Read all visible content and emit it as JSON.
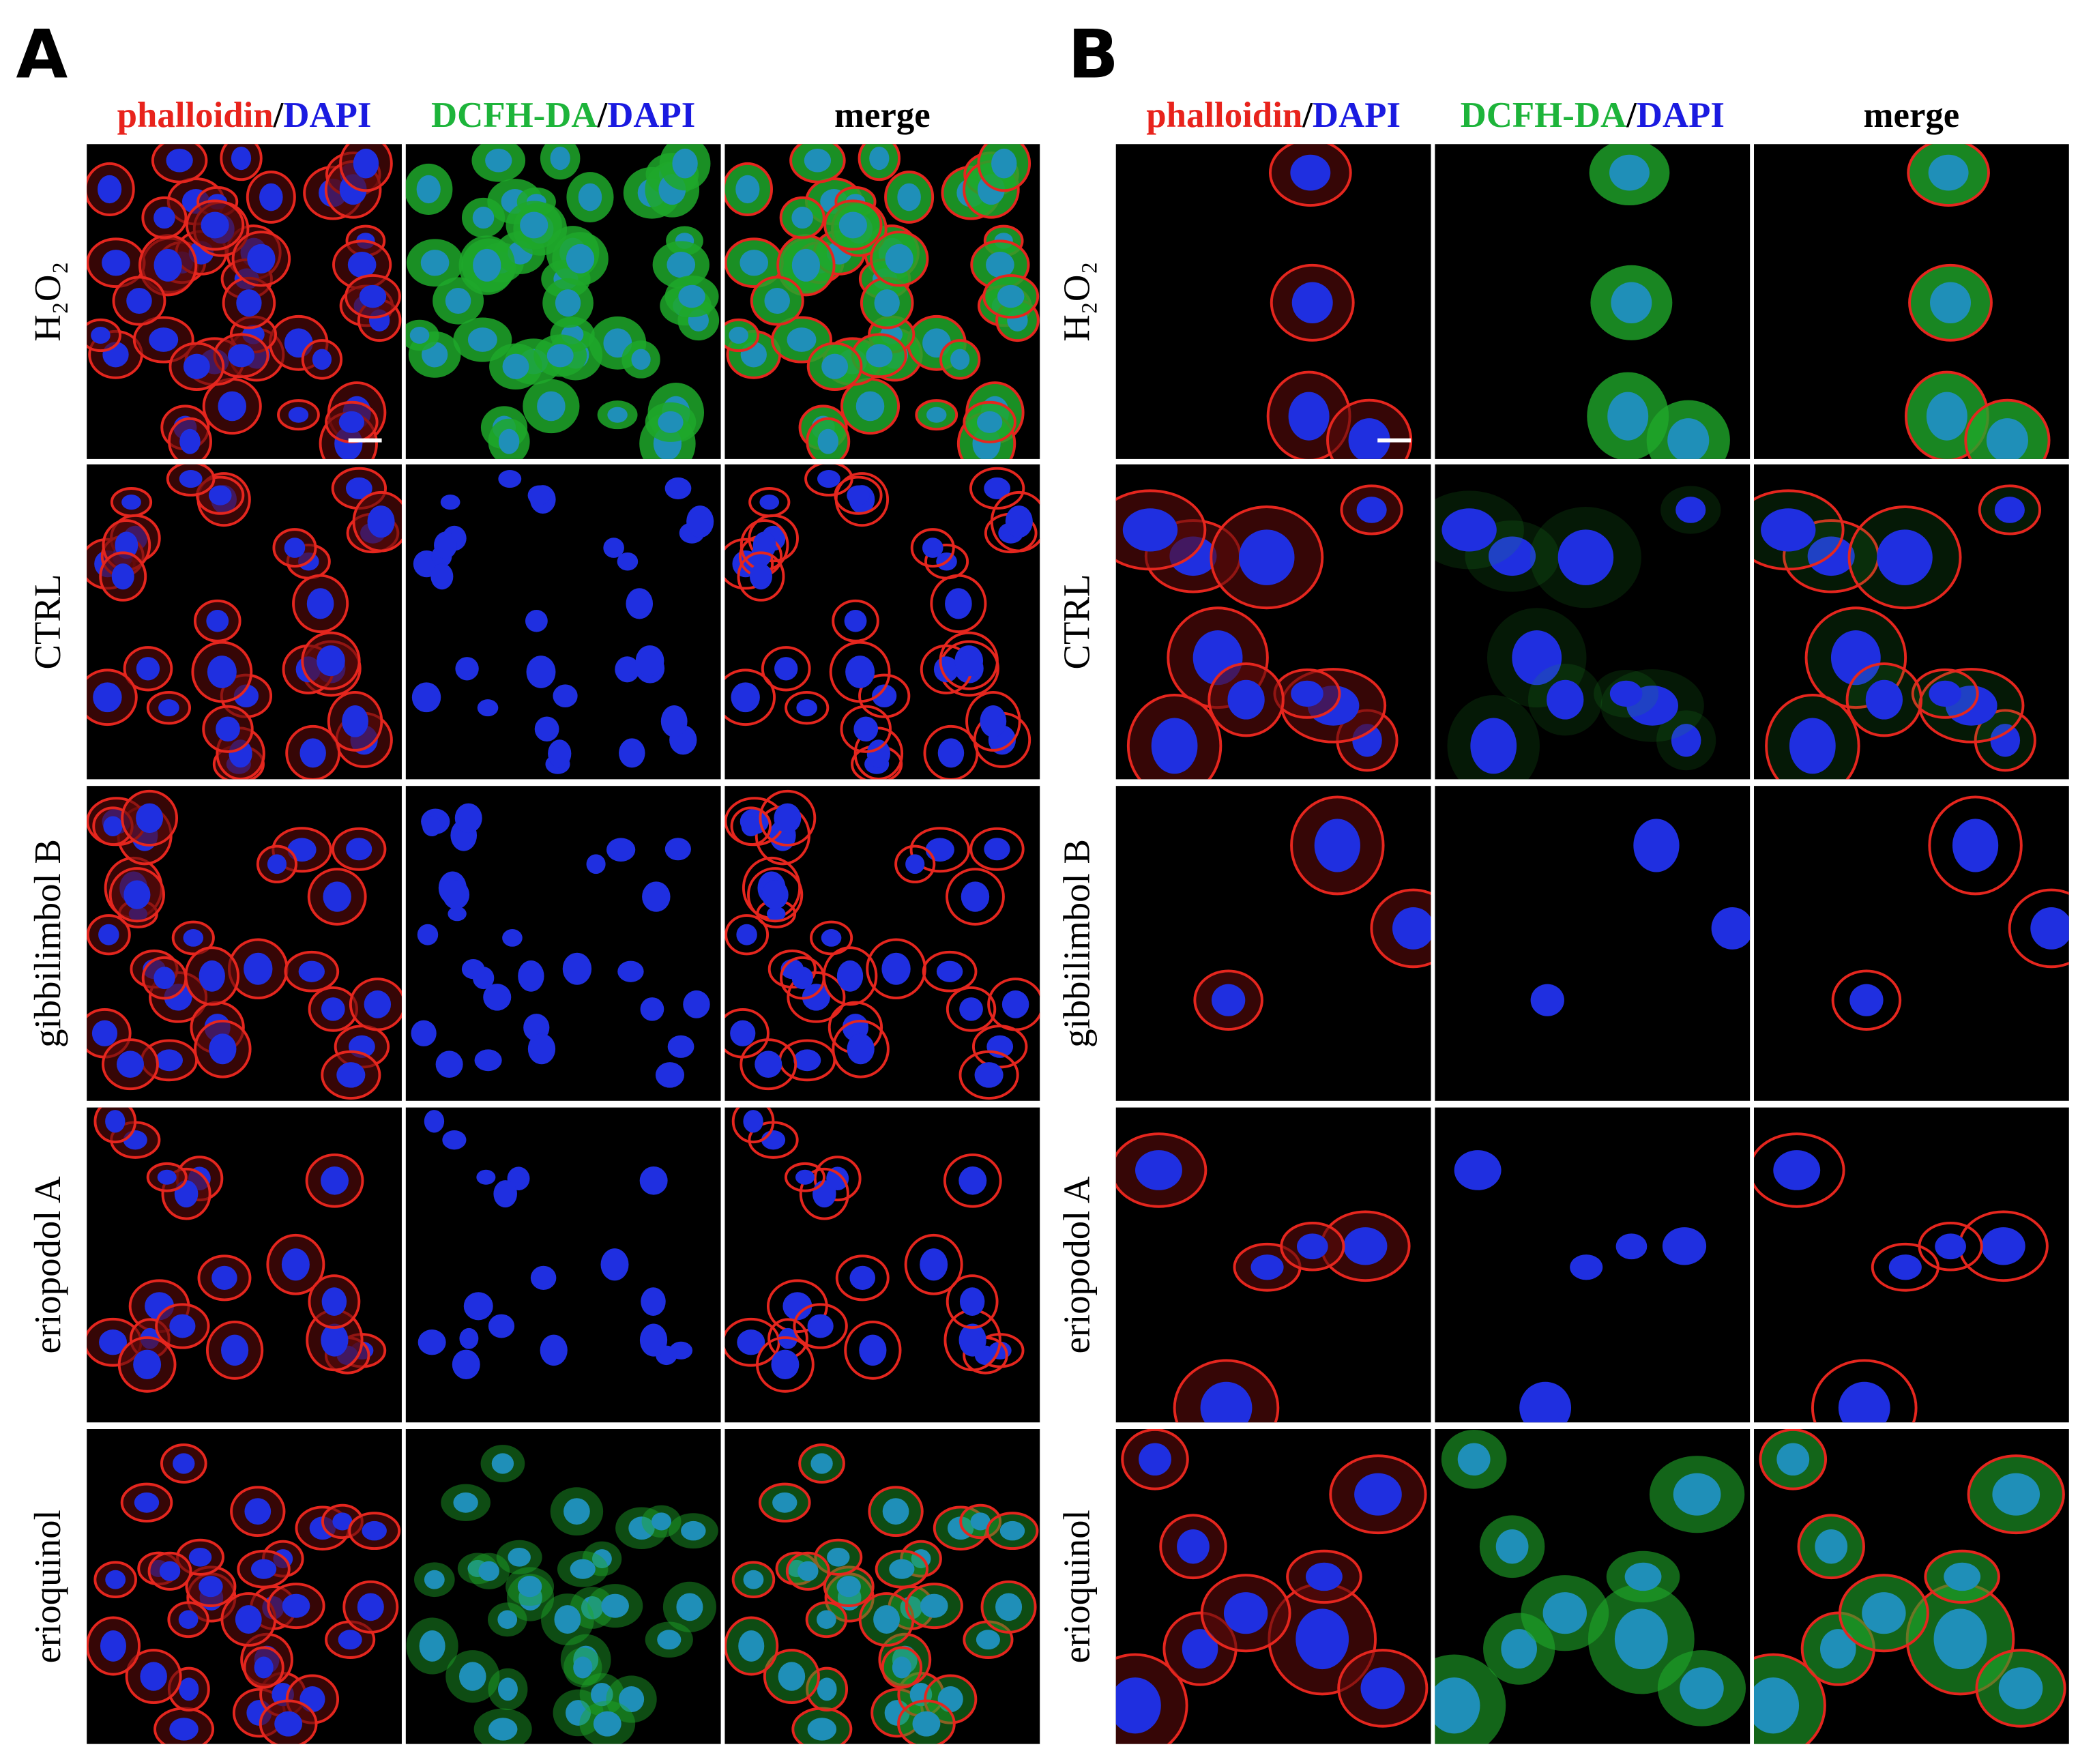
{
  "panels": [
    {
      "label": "A",
      "columns": [
        [
          "phalloidin",
          "/",
          "DAPI"
        ],
        [
          "DCFH-DA",
          "/",
          "DAPI"
        ],
        [
          "merge"
        ]
      ],
      "rows": [
        "H₂O₂",
        "CTRL",
        "gibbilimbol B",
        "eriopodol A",
        "erioquinol"
      ]
    },
    {
      "label": "B",
      "columns": [
        [
          "phalloidin",
          "/",
          "DAPI"
        ],
        [
          "DCFH-DA",
          "/",
          "DAPI"
        ],
        [
          "merge"
        ]
      ],
      "rows": [
        "H₂O₂",
        "CTRL",
        "gibbilimbol B",
        "eriopodol A",
        "erioquinol"
      ]
    }
  ]
}
